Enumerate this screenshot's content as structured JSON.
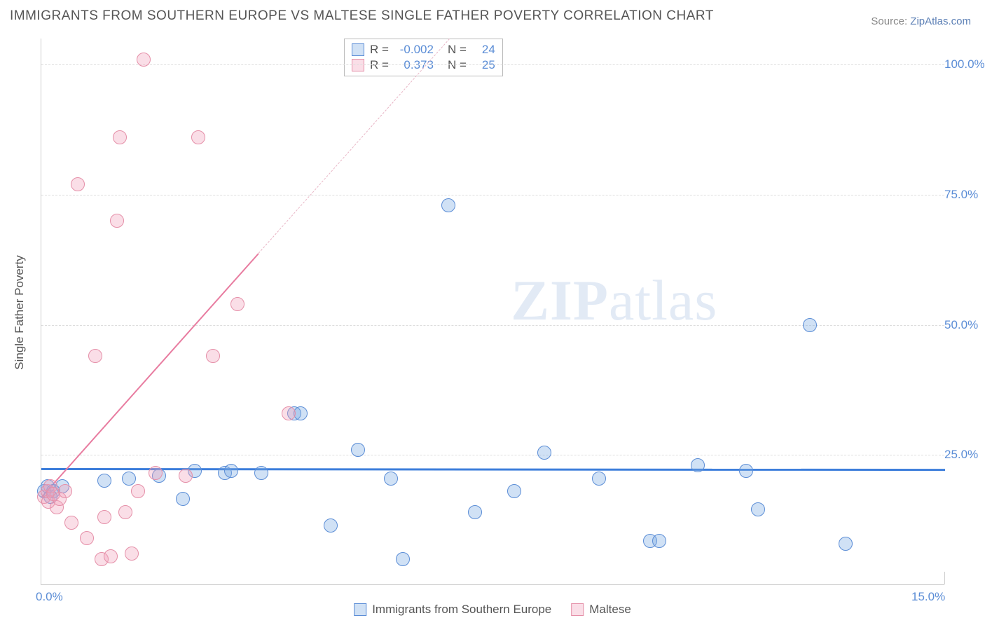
{
  "title": "IMMIGRANTS FROM SOUTHERN EUROPE VS MALTESE SINGLE FATHER POVERTY CORRELATION CHART",
  "source": {
    "label": "Source: ",
    "name": "ZipAtlas.com"
  },
  "ylabel": "Single Father Poverty",
  "watermark": {
    "bold": "ZIP",
    "rest": "atlas"
  },
  "chart": {
    "type": "scatter",
    "xlim": [
      0,
      15
    ],
    "ylim": [
      0,
      105
    ],
    "xticks": [
      {
        "val": 0.0,
        "label": "0.0%"
      },
      {
        "val": 15.0,
        "label": "15.0%"
      }
    ],
    "yticks": [
      {
        "val": 25,
        "label": "25.0%"
      },
      {
        "val": 50,
        "label": "50.0%"
      },
      {
        "val": 75,
        "label": "75.0%"
      },
      {
        "val": 100,
        "label": "100.0%"
      }
    ],
    "grid_color": "#dddddd",
    "background_color": "#ffffff",
    "marker_size": 20,
    "series": [
      {
        "name": "Immigrants from Southern Europe",
        "color_fill": "rgba(120,170,225,0.35)",
        "color_stroke": "#5b8dd6",
        "r": -0.002,
        "n": 24,
        "trend": {
          "y_intercept": 22.5,
          "slope": -0.01,
          "color": "#3d7edb",
          "width": 3
        },
        "points": [
          [
            0.05,
            18
          ],
          [
            0.1,
            19
          ],
          [
            0.15,
            17
          ],
          [
            0.2,
            18
          ],
          [
            0.35,
            19
          ],
          [
            1.05,
            20
          ],
          [
            1.45,
            20.5
          ],
          [
            1.95,
            21
          ],
          [
            2.35,
            16.5
          ],
          [
            2.55,
            22
          ],
          [
            3.05,
            21.5
          ],
          [
            3.15,
            22
          ],
          [
            3.65,
            21.5
          ],
          [
            4.2,
            33
          ],
          [
            4.3,
            33
          ],
          [
            4.8,
            11.5
          ],
          [
            5.25,
            26
          ],
          [
            5.8,
            20.5
          ],
          [
            6.0,
            5
          ],
          [
            6.75,
            73
          ],
          [
            7.2,
            14
          ],
          [
            7.85,
            18
          ],
          [
            8.35,
            25.5
          ],
          [
            9.25,
            20.5
          ],
          [
            10.1,
            8.5
          ],
          [
            10.25,
            8.5
          ],
          [
            10.9,
            23
          ],
          [
            11.7,
            22
          ],
          [
            11.9,
            14.5
          ],
          [
            12.75,
            50
          ],
          [
            13.35,
            8
          ]
        ]
      },
      {
        "name": "Maltese",
        "color_fill": "rgba(240,160,185,0.35)",
        "color_stroke": "#e58fa8",
        "r": 0.373,
        "n": 25,
        "trend": {
          "y_intercept": 17,
          "slope": 13.0,
          "color": "#e87ca0",
          "width": 2,
          "dash_after_x": 3.6
        },
        "points": [
          [
            0.05,
            17
          ],
          [
            0.1,
            18
          ],
          [
            0.12,
            16
          ],
          [
            0.15,
            19
          ],
          [
            0.2,
            17.5
          ],
          [
            0.25,
            15
          ],
          [
            0.3,
            16.5
          ],
          [
            0.4,
            18
          ],
          [
            0.5,
            12
          ],
          [
            0.6,
            77
          ],
          [
            0.75,
            9
          ],
          [
            0.9,
            44
          ],
          [
            1.0,
            5
          ],
          [
            1.05,
            13
          ],
          [
            1.15,
            5.5
          ],
          [
            1.25,
            70
          ],
          [
            1.3,
            86
          ],
          [
            1.4,
            14
          ],
          [
            1.5,
            6
          ],
          [
            1.6,
            18
          ],
          [
            1.7,
            101
          ],
          [
            1.9,
            21.5
          ],
          [
            2.4,
            21
          ],
          [
            2.6,
            86
          ],
          [
            2.85,
            44
          ],
          [
            3.25,
            54
          ],
          [
            4.1,
            33
          ]
        ]
      }
    ]
  },
  "legend_top": {
    "rows": [
      {
        "swatch": "blue",
        "r_label": "R =",
        "r": "-0.002",
        "n_label": "N =",
        "n": "24"
      },
      {
        "swatch": "pink",
        "r_label": "R =",
        "r": "0.373",
        "n_label": "N =",
        "n": "25"
      }
    ]
  },
  "legend_bottom": [
    {
      "swatch": "blue",
      "label": "Immigrants from Southern Europe"
    },
    {
      "swatch": "pink",
      "label": "Maltese"
    }
  ]
}
